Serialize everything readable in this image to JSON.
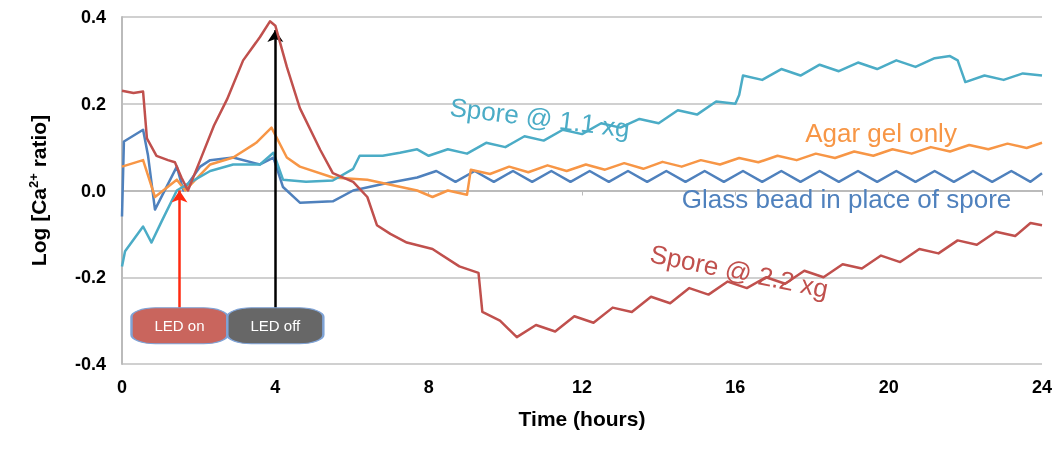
{
  "chart_data": {
    "type": "line",
    "xlabel": "Time (hours)",
    "ylabel": "Log [Ca$^{2+}$ ratio]",
    "xlim": [
      0,
      24
    ],
    "xticks": [
      0,
      4,
      8,
      12,
      16,
      20,
      24
    ],
    "ylim": [
      -0.4,
      0.4
    ],
    "yticks": [
      {
        "value": -0.4,
        "label": "-0.4"
      },
      {
        "value": -0.2,
        "label": "-0.2"
      },
      {
        "value": 0,
        "label": "0.0"
      },
      {
        "value": 0.2,
        "label": "0.2"
      },
      {
        "value": 0.4,
        "label": "0.4"
      }
    ],
    "grid": "y",
    "marker": "none",
    "annotations": [
      {
        "text": "LED on",
        "x": 1.5,
        "y": 0
      },
      {
        "text": "LED off",
        "x": 4,
        "y": 0.37
      }
    ],
    "series": [
      {
        "name": "Glass bead in place of spore",
        "color": "#4f81bd",
        "x": [
          0,
          0.05,
          0.55,
          0.68,
          0.86,
          1.43,
          1.6,
          2.04,
          2.3,
          2.9,
          3.6,
          3.95,
          4.2,
          4.64,
          5.5,
          6.03,
          6.8,
          7.7,
          8.2,
          8.7,
          9.2,
          9.7,
          10.2,
          10.7,
          11.2,
          11.7,
          12.2,
          12.7,
          13.2,
          13.7,
          14.2,
          14.7,
          15.2,
          15.7,
          16.2,
          16.7,
          17.2,
          17.7,
          18.2,
          18.7,
          19.2,
          19.7,
          20.2,
          20.7,
          21.2,
          21.7,
          22.2,
          22.7,
          23.2,
          23.7,
          24
        ],
        "values": [
          -0.06,
          0.113,
          0.14,
          0.08,
          -0.044,
          0.055,
          0,
          0.055,
          0.07,
          0.076,
          0.06,
          0.076,
          0.008,
          -0.028,
          -0.025,
          0,
          0.015,
          0.03,
          0.045,
          0.02,
          0.045,
          0.02,
          0.045,
          0.02,
          0.045,
          0.02,
          0.045,
          0.02,
          0.045,
          0.02,
          0.045,
          0.02,
          0.045,
          0.02,
          0.045,
          0.02,
          0.045,
          0.02,
          0.045,
          0.02,
          0.045,
          0.02,
          0.045,
          0.02,
          0.045,
          0.02,
          0.045,
          0.02,
          0.045,
          0.02,
          0.04
        ]
      },
      {
        "name": "Agar gel only",
        "color": "#f79646",
        "x": [
          0,
          0.55,
          0.86,
          1.43,
          1.65,
          2.3,
          2.9,
          3.5,
          3.9,
          4.3,
          4.64,
          5.5,
          6.4,
          7.7,
          8.1,
          8.5,
          9.0,
          9.1,
          9.6,
          10.1,
          10.6,
          11.1,
          11.6,
          12.1,
          12.6,
          13.1,
          13.6,
          14.1,
          14.6,
          15.1,
          15.6,
          16.1,
          16.6,
          17.1,
          17.6,
          18.1,
          18.6,
          19.1,
          19.6,
          20.1,
          20.6,
          21.1,
          21.6,
          22.1,
          22.6,
          23.1,
          23.6,
          24
        ],
        "values": [
          0.055,
          0.07,
          -0.015,
          0.025,
          0,
          0.06,
          0.076,
          0.11,
          0.145,
          0.076,
          0.055,
          0.03,
          0.025,
          0,
          -0.015,
          0,
          -0.01,
          0.048,
          0.038,
          0.055,
          0.042,
          0.058,
          0.045,
          0.06,
          0.048,
          0.063,
          0.05,
          0.066,
          0.055,
          0.07,
          0.06,
          0.075,
          0.065,
          0.08,
          0.07,
          0.085,
          0.075,
          0.09,
          0.08,
          0.095,
          0.085,
          0.1,
          0.09,
          0.105,
          0.095,
          0.108,
          0.098,
          0.11
        ]
      },
      {
        "name": "Spore @ 1.1 xg",
        "color": "#4bacc6",
        "x": [
          0,
          0.08,
          0.55,
          0.77,
          1.04,
          1.43,
          1.77,
          2.3,
          2.9,
          3.6,
          3.95,
          4.2,
          4.8,
          5.5,
          6.03,
          6.2,
          6.8,
          7.25,
          7.7,
          8.0,
          8.5,
          9.0,
          9.5,
          10.0,
          10.5,
          11.0,
          11.5,
          12.0,
          12.5,
          13.0,
          13.5,
          14.0,
          14.5,
          15.0,
          15.5,
          16.0,
          16.1,
          16.2,
          16.7,
          17.2,
          17.7,
          18.2,
          18.7,
          19.2,
          19.7,
          20.2,
          20.7,
          21.2,
          21.6,
          21.8,
          22.0,
          22.5,
          23.0,
          23.5,
          24
        ],
        "values": [
          -0.175,
          -0.14,
          -0.083,
          -0.12,
          -0.07,
          0,
          0.018,
          0.045,
          0.06,
          0.06,
          0.087,
          0.025,
          0.02,
          0.023,
          0.05,
          0.08,
          0.08,
          0.087,
          0.095,
          0.08,
          0.095,
          0.085,
          0.11,
          0.1,
          0.125,
          0.115,
          0.14,
          0.13,
          0.155,
          0.145,
          0.165,
          0.155,
          0.185,
          0.175,
          0.205,
          0.2,
          0.22,
          0.265,
          0.255,
          0.28,
          0.265,
          0.29,
          0.275,
          0.295,
          0.28,
          0.3,
          0.285,
          0.305,
          0.31,
          0.3,
          0.25,
          0.265,
          0.255,
          0.27,
          0.265
        ]
      },
      {
        "name": "Spore @ 2.2 xg",
        "color": "#c0504d",
        "x": [
          0,
          0.3,
          0.55,
          0.65,
          0.9,
          1.2,
          1.38,
          1.55,
          1.72,
          2.04,
          2.4,
          2.74,
          3.16,
          3.6,
          3.86,
          4.0,
          4.3,
          4.64,
          5.17,
          5.5,
          6.03,
          6.4,
          6.65,
          7.0,
          7.43,
          8.1,
          8.8,
          9.3,
          9.4,
          9.86,
          10.3,
          10.8,
          11.3,
          11.8,
          12.3,
          12.8,
          13.3,
          13.8,
          14.3,
          14.8,
          15.3,
          15.8,
          16.3,
          16.8,
          17.3,
          17.8,
          18.3,
          18.8,
          19.3,
          19.8,
          20.3,
          20.8,
          21.3,
          21.8,
          22.3,
          22.8,
          23.3,
          23.7,
          24
        ],
        "values": [
          0.23,
          0.225,
          0.228,
          0.12,
          0.08,
          0.07,
          0.065,
          0.03,
          0,
          0.07,
          0.15,
          0.21,
          0.3,
          0.354,
          0.39,
          0.38,
          0.285,
          0.19,
          0.094,
          0.04,
          0.02,
          -0.015,
          -0.08,
          -0.1,
          -0.12,
          -0.135,
          -0.175,
          -0.19,
          -0.28,
          -0.3,
          -0.338,
          -0.31,
          -0.325,
          -0.29,
          -0.305,
          -0.27,
          -0.28,
          -0.245,
          -0.26,
          -0.225,
          -0.24,
          -0.21,
          -0.225,
          -0.2,
          -0.215,
          -0.185,
          -0.2,
          -0.17,
          -0.18,
          -0.15,
          -0.165,
          -0.135,
          -0.145,
          -0.115,
          -0.125,
          -0.095,
          -0.105,
          -0.075,
          -0.08
        ]
      }
    ]
  }
}
